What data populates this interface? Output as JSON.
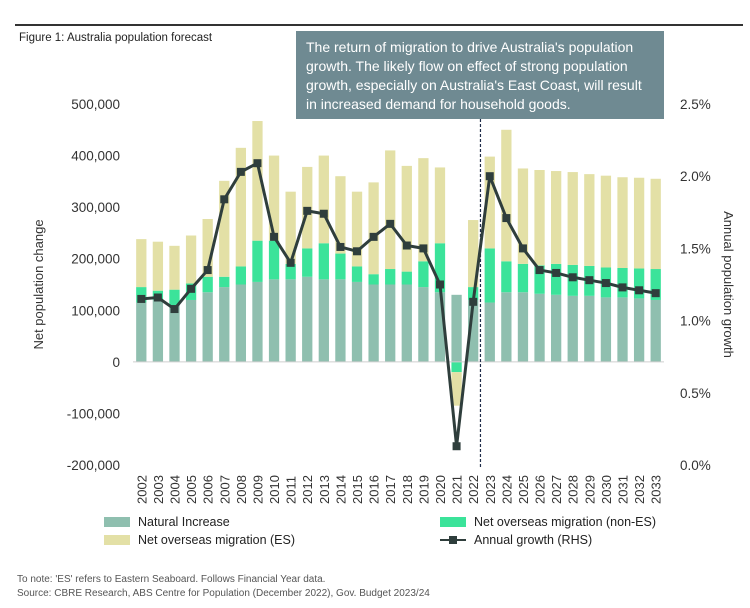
{
  "figure_title": "Figure 1: Australia population forecast",
  "callout_text": "The return of migration to drive Australia's population growth. The likely flow on effect of strong population growth, especially on Australia's East Coast, will result in increased demand for household goods.",
  "legend": {
    "natural_increase": "Natural Increase",
    "nom_non_es": "Net overseas migration (non-ES)",
    "nom_es": "Net overseas migration (ES)",
    "annual_growth": "Annual growth (RHS)"
  },
  "notes": {
    "note": "To note: 'ES' refers to Eastern Seaboard. Follows Financial Year data.",
    "source": "Source: CBRE Research, ABS Centre for Population (December 2022), Gov. Budget 2023/24"
  },
  "colors": {
    "natural_increase": "#8fbfaf",
    "nom_non_es": "#3be39a",
    "nom_es": "#e3e0a6",
    "growth_line": "#2f3e3c",
    "forecast_divider": "#1f2d4a"
  },
  "chart_data": {
    "type": "bar",
    "stacked": true,
    "categories": [
      "2002",
      "2003",
      "2004",
      "2005",
      "2006",
      "2007",
      "2008",
      "2009",
      "2010",
      "2011",
      "2012",
      "2013",
      "2014",
      "2015",
      "2016",
      "2017",
      "2018",
      "2019",
      "2020",
      "2021",
      "2022",
      "2023",
      "2024",
      "2025",
      "2026",
      "2027",
      "2028",
      "2029",
      "2030",
      "2031",
      "2032",
      "2033"
    ],
    "ylabel": "Net population change",
    "y2label": "Annual population growth",
    "ylim": [
      -200000,
      500000
    ],
    "y_ticks": [
      "-200,000",
      "-100,000",
      "0",
      "100,000",
      "200,000",
      "300,000",
      "400,000",
      "500,000"
    ],
    "y2lim": [
      0.0,
      2.5
    ],
    "y2_ticks": [
      "0.0%",
      "0.5%",
      "1.0%",
      "1.5%",
      "2.0%",
      "2.5%"
    ],
    "forecast_marker_at": "2023",
    "series": [
      {
        "name": "Natural Increase",
        "axis": "left",
        "values": [
          115000,
          120000,
          110000,
          120000,
          135000,
          145000,
          150000,
          155000,
          160000,
          160000,
          165000,
          160000,
          160000,
          155000,
          150000,
          150000,
          150000,
          145000,
          135000,
          130000,
          120000,
          115000,
          135000,
          135000,
          132000,
          130000,
          128000,
          128000,
          125000,
          125000,
          123000,
          120000
        ]
      },
      {
        "name": "Net overseas migration (non-ES)",
        "axis": "left",
        "values": [
          30000,
          18000,
          30000,
          32000,
          30000,
          20000,
          35000,
          80000,
          75000,
          30000,
          55000,
          70000,
          50000,
          30000,
          20000,
          30000,
          25000,
          50000,
          95000,
          -20000,
          25000,
          105000,
          60000,
          55000,
          55000,
          60000,
          60000,
          58000,
          58000,
          57000,
          58000,
          60000
        ]
      },
      {
        "name": "Net overseas migration (ES)",
        "axis": "left",
        "values": [
          93000,
          95000,
          85000,
          93000,
          112000,
          186000,
          230000,
          232000,
          165000,
          140000,
          158000,
          170000,
          150000,
          145000,
          178000,
          230000,
          205000,
          200000,
          147000,
          -65000,
          130000,
          178000,
          255000,
          185000,
          185000,
          180000,
          180000,
          178000,
          178000,
          176000,
          176000,
          175000
        ]
      },
      {
        "name": "Annual growth (RHS)",
        "axis": "right",
        "type": "line",
        "values": [
          1.15,
          1.16,
          1.08,
          1.22,
          1.35,
          1.84,
          2.03,
          2.09,
          1.58,
          1.4,
          1.76,
          1.74,
          1.51,
          1.48,
          1.58,
          1.67,
          1.52,
          1.5,
          1.25,
          0.13,
          1.13,
          2.0,
          1.71,
          1.5,
          1.35,
          1.33,
          1.3,
          1.28,
          1.26,
          1.23,
          1.21,
          1.19
        ]
      }
    ]
  }
}
